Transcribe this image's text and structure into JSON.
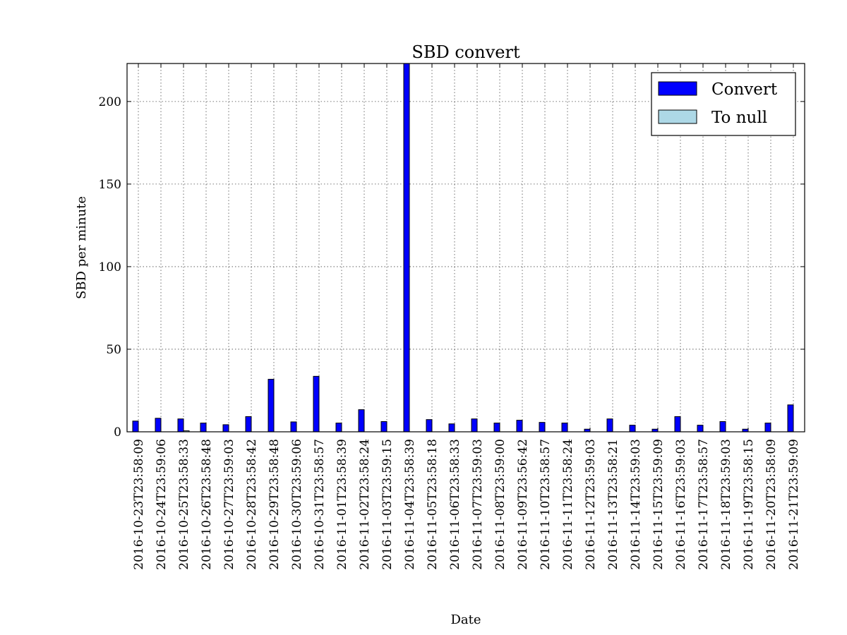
{
  "chart_data": {
    "type": "bar",
    "title": "SBD convert",
    "xlabel": "Date",
    "ylabel": "SBD per minute",
    "ylim": [
      0,
      223
    ],
    "yticks": [
      0,
      50,
      100,
      150,
      200
    ],
    "grid": true,
    "legend_position": "top-right",
    "categories": [
      "2016-10-23T23:58:09",
      "2016-10-24T23:59:06",
      "2016-10-25T23:58:33",
      "2016-10-26T23:58:48",
      "2016-10-27T23:59:03",
      "2016-10-28T23:58:42",
      "2016-10-29T23:58:48",
      "2016-10-30T23:59:06",
      "2016-10-31T23:58:57",
      "2016-11-01T23:58:39",
      "2016-11-02T23:58:24",
      "2016-11-03T23:59:15",
      "2016-11-04T23:58:39",
      "2016-11-05T23:58:18",
      "2016-11-06T23:58:33",
      "2016-11-07T23:59:03",
      "2016-11-08T23:59:00",
      "2016-11-09T23:56:42",
      "2016-11-10T23:58:57",
      "2016-11-11T23:58:24",
      "2016-11-12T23:59:03",
      "2016-11-13T23:58:21",
      "2016-11-14T23:59:03",
      "2016-11-15T23:59:09",
      "2016-11-16T23:59:03",
      "2016-11-17T23:58:57",
      "2016-11-18T23:59:03",
      "2016-11-19T23:58:15",
      "2016-11-20T23:58:09",
      "2016-11-21T23:59:09"
    ],
    "series": [
      {
        "name": "Convert",
        "color": "#0000ff",
        "values": [
          6.5,
          8.2,
          7.8,
          5.3,
          4.3,
          9.2,
          31.8,
          6.0,
          33.6,
          5.3,
          13.4,
          6.2,
          223,
          7.4,
          4.8,
          7.8,
          5.3,
          7.0,
          5.7,
          5.3,
          1.6,
          7.8,
          4.0,
          1.6,
          9.2,
          4.0,
          6.2,
          1.6,
          5.3,
          16.3
        ]
      },
      {
        "name": "To null",
        "color": "#add8e6",
        "values": [
          0,
          0,
          0.6,
          0,
          0,
          0,
          0,
          0,
          0,
          0,
          0,
          0,
          0,
          0,
          0,
          0,
          0,
          0,
          0,
          0,
          0,
          0,
          0,
          0,
          0,
          0,
          0,
          0,
          0,
          0
        ]
      }
    ]
  }
}
